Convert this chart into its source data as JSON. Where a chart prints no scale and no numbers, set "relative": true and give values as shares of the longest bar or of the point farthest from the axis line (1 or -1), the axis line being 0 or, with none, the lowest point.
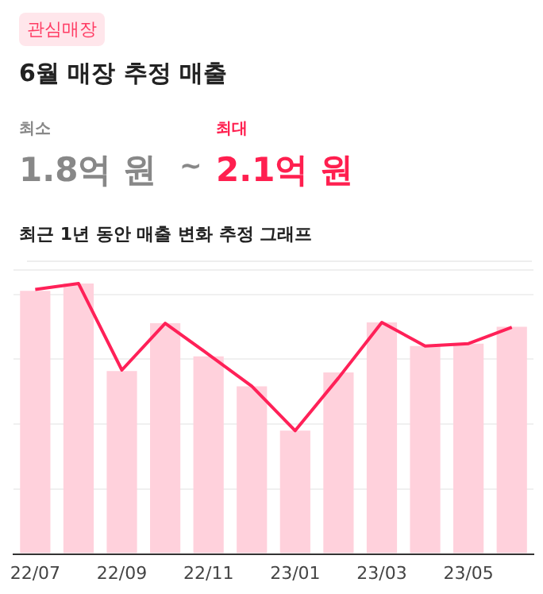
{
  "chart_data": {
    "type": "bar",
    "title": "6월 매장 추정 매출",
    "subtitle": "최근 1년 동안 매출 변화 추정 그래프",
    "annotations": [
      "관심매장",
      "최소",
      "1.8억 원",
      "~",
      "최대",
      "2.1억 원"
    ],
    "relative": true,
    "grid": "y",
    "legend": false,
    "categories": [
      "22/07",
      null,
      "22/09",
      null,
      "22/11",
      null,
      "23/01",
      null,
      "23/03",
      null,
      "23/05",
      null
    ],
    "series": [
      {
        "color": "#ffd1dc",
        "values": [
          0.973,
          1,
          0.676,
          0.853,
          0.731,
          0.62,
          0.456,
          0.671,
          0.856,
          0.769,
          0.778,
          0.84
        ]
      },
      {
        "type": "line",
        "color": "#ff2158",
        "values": [
          0.978,
          1,
          0.68,
          0.853,
          0.738,
          0.62,
          0.456,
          0.651,
          0.856,
          0.769,
          0.778,
          0.838
        ]
      }
    ]
  }
}
